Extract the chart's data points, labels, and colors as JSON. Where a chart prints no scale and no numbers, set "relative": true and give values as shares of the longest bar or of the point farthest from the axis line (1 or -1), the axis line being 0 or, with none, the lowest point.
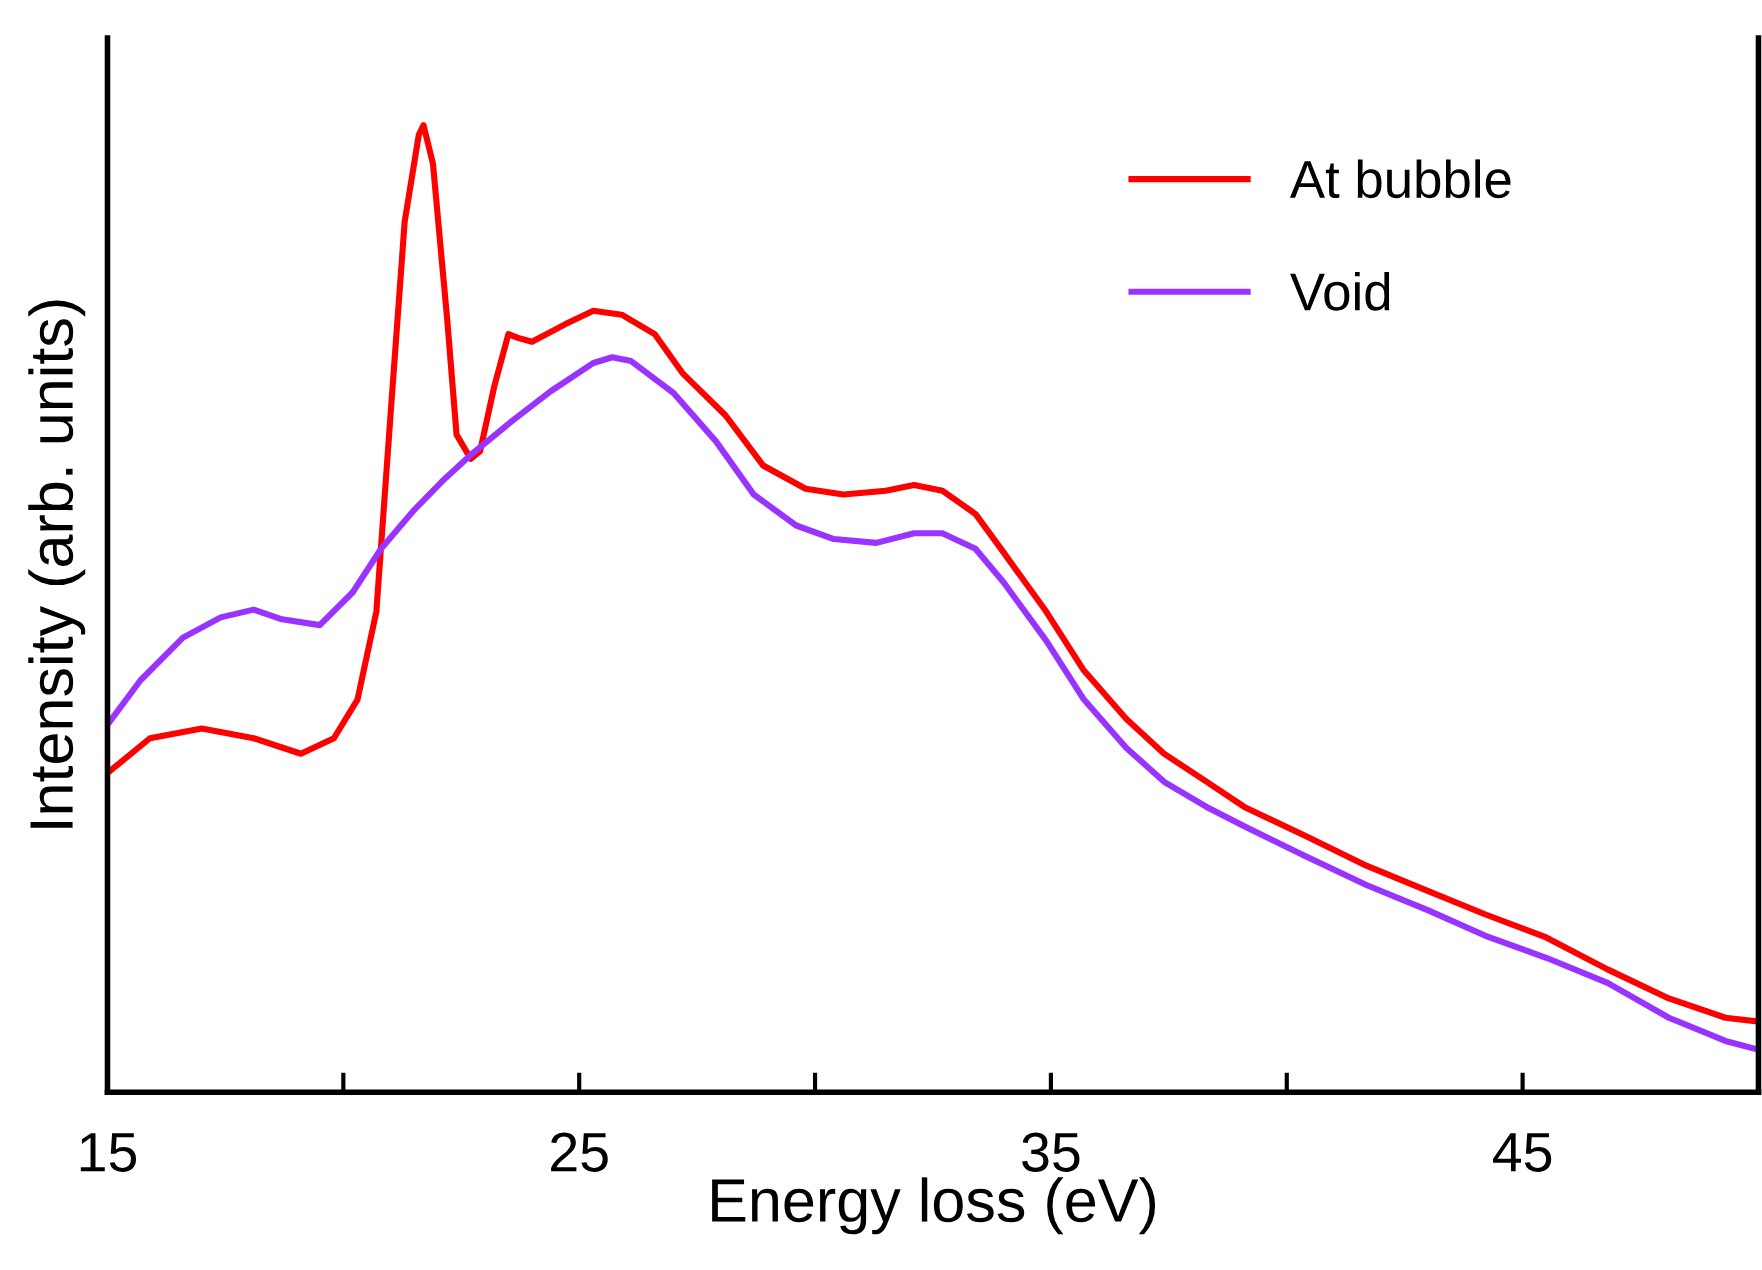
{
  "chart_data": {
    "type": "line",
    "xlabel": "Energy loss (eV)",
    "ylabel": "Intensity (arb. units)",
    "relative": true,
    "xlim": [
      15,
      50
    ],
    "xticks": [
      15,
      {
        "value": 20,
        "label": null
      },
      25,
      {
        "value": 30,
        "label": null
      },
      35,
      {
        "value": 40,
        "label": null
      },
      45
    ],
    "legend": "top right",
    "grid": false,
    "marker": "none",
    "line_style": "solid",
    "tick_labels": "x",
    "series": [
      {
        "name": "At bubble",
        "color": "#ff0000",
        "x": [
          15.0,
          15.9,
          17.0,
          18.1,
          19.1,
          19.8,
          20.3,
          20.7,
          21.0,
          21.3,
          21.6,
          21.7,
          21.9,
          22.2,
          22.4,
          22.7,
          22.9,
          23.2,
          23.5,
          23.7,
          24.0,
          24.7,
          25.3,
          25.9,
          26.6,
          27.2,
          28.1,
          28.9,
          29.8,
          30.6,
          31.5,
          32.1,
          32.7,
          33.4,
          34.0,
          34.9,
          35.7,
          36.6,
          37.4,
          38.3,
          39.1,
          40.4,
          41.7,
          43.0,
          44.2,
          45.5,
          46.8,
          48.1,
          49.3,
          50.0
        ],
        "values": [
          0.33,
          0.366,
          0.376,
          0.366,
          0.35,
          0.366,
          0.406,
          0.497,
          0.7,
          0.9,
          0.99,
          1.0,
          0.96,
          0.8,
          0.68,
          0.655,
          0.663,
          0.73,
          0.784,
          0.78,
          0.776,
          0.794,
          0.808,
          0.804,
          0.784,
          0.743,
          0.7,
          0.648,
          0.624,
          0.618,
          0.622,
          0.628,
          0.622,
          0.598,
          0.558,
          0.497,
          0.436,
          0.386,
          0.35,
          0.321,
          0.295,
          0.265,
          0.234,
          0.208,
          0.184,
          0.16,
          0.127,
          0.097,
          0.077,
          0.073
        ]
      },
      {
        "name": "Void",
        "color": "#9933ff",
        "x": [
          15.0,
          15.7,
          16.6,
          17.4,
          18.1,
          18.7,
          19.5,
          20.2,
          20.8,
          21.5,
          22.1,
          22.7,
          23.6,
          24.4,
          25.3,
          25.7,
          26.1,
          27.0,
          27.9,
          28.7,
          29.6,
          30.4,
          31.3,
          32.1,
          32.7,
          33.4,
          34.0,
          34.9,
          35.7,
          36.6,
          37.4,
          38.3,
          39.1,
          40.4,
          41.7,
          43.0,
          44.2,
          45.5,
          46.8,
          48.1,
          49.3,
          50.0
        ],
        "values": [
          0.38,
          0.426,
          0.47,
          0.491,
          0.499,
          0.489,
          0.483,
          0.517,
          0.562,
          0.602,
          0.632,
          0.659,
          0.695,
          0.725,
          0.754,
          0.76,
          0.756,
          0.723,
          0.673,
          0.618,
          0.586,
          0.572,
          0.568,
          0.578,
          0.578,
          0.562,
          0.527,
          0.467,
          0.406,
          0.356,
          0.321,
          0.295,
          0.275,
          0.244,
          0.214,
          0.188,
          0.162,
          0.139,
          0.113,
          0.077,
          0.053,
          0.044
        ]
      }
    ]
  }
}
